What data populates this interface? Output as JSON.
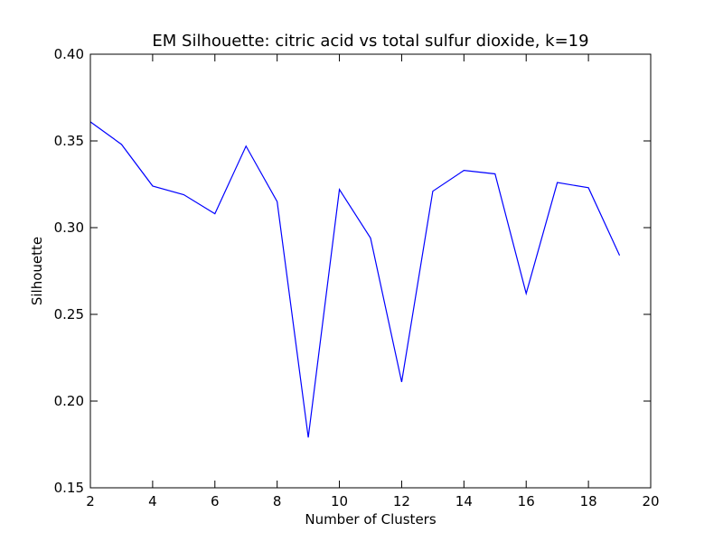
{
  "chart_data": {
    "type": "line",
    "title": "EM Silhouette: citric acid vs total sulfur dioxide, k=19",
    "xlabel": "Number of Clusters",
    "ylabel": "Silhouette",
    "xlim": [
      2,
      20
    ],
    "ylim": [
      0.15,
      0.4
    ],
    "grid": false,
    "x_ticks": [
      2,
      4,
      6,
      8,
      10,
      12,
      14,
      16,
      18,
      20
    ],
    "x_tick_labels": [
      "2",
      "4",
      "6",
      "8",
      "10",
      "12",
      "14",
      "16",
      "18",
      "20"
    ],
    "y_ticks": [
      0.15,
      0.2,
      0.25,
      0.3,
      0.35,
      0.4
    ],
    "y_tick_labels": [
      "0.15",
      "0.20",
      "0.25",
      "0.30",
      "0.35",
      "0.40"
    ],
    "series": [
      {
        "color": "#0000ff",
        "x": [
          2,
          3,
          4,
          5,
          6,
          7,
          8,
          9,
          10,
          11,
          12,
          13,
          14,
          15,
          16,
          17,
          18,
          19
        ],
        "values": [
          0.361,
          0.348,
          0.324,
          0.319,
          0.308,
          0.347,
          0.315,
          0.179,
          0.322,
          0.294,
          0.211,
          0.321,
          0.333,
          0.331,
          0.262,
          0.326,
          0.323,
          0.284
        ]
      }
    ]
  }
}
